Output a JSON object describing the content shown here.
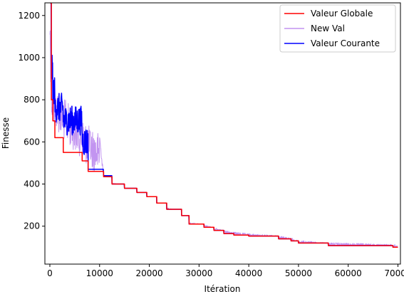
{
  "chart_data": {
    "type": "line",
    "title": "",
    "xlabel": "Itération",
    "ylabel": "Finesse",
    "xlim": [
      -1000,
      70500
    ],
    "ylim": [
      20,
      1260
    ],
    "xticks": [
      0,
      10000,
      20000,
      30000,
      40000,
      50000,
      60000,
      70000
    ],
    "xtick_labels": [
      "0",
      "10000",
      "20000",
      "30000",
      "40000",
      "50000",
      "60000",
      "70000"
    ],
    "yticks": [
      200,
      400,
      600,
      800,
      1000,
      1200
    ],
    "ytick_labels": [
      "200",
      "400",
      "600",
      "800",
      "1000",
      "1200"
    ],
    "grid": false,
    "legend": {
      "placement": "top-right"
    },
    "series": [
      {
        "name": "Valeur Globale",
        "color": "#ff0000",
        "style": "step",
        "x": [
          0,
          300,
          600,
          1000,
          2700,
          6500,
          7700,
          10800,
          12500,
          15000,
          17500,
          19500,
          21500,
          23500,
          26500,
          28000,
          31000,
          33000,
          35000,
          37000,
          40000,
          46000,
          48500,
          50000,
          56000,
          69000,
          70000
        ],
        "y": [
          1260,
          800,
          700,
          620,
          550,
          510,
          460,
          435,
          400,
          380,
          360,
          340,
          310,
          280,
          250,
          210,
          195,
          180,
          165,
          158,
          153,
          140,
          130,
          120,
          108,
          100,
          100
        ]
      },
      {
        "name": "New Val",
        "color": "#c294f0",
        "style": "noisy",
        "x": [
          0,
          300,
          600,
          1000,
          2700,
          6500,
          7700,
          10000,
          10800,
          12500,
          15000,
          17500,
          19500,
          21500,
          23500,
          26500,
          28000,
          31000,
          33000,
          35000,
          37000,
          40000,
          46000,
          48500,
          50000,
          56000,
          69000,
          70000
        ],
        "y": [
          1240,
          930,
          860,
          870,
          810,
          720,
          680,
          640,
          445,
          410,
          385,
          365,
          345,
          318,
          290,
          262,
          220,
          208,
          194,
          180,
          172,
          165,
          155,
          144,
          132,
          122,
          114,
          112
        ]
      },
      {
        "name": "Valeur Courante",
        "color": "#0000ff",
        "style": "noisy",
        "x": [
          0,
          300,
          600,
          1000,
          2700,
          6500,
          7700,
          10800,
          12500,
          15000,
          17500,
          19500,
          21500,
          23500,
          26500,
          28000,
          31000,
          33000,
          35000,
          37000,
          40000,
          46000,
          48500,
          50000,
          56000,
          69000,
          70000
        ],
        "y": [
          1260,
          900,
          800,
          720,
          660,
          560,
          470,
          440,
          400,
          380,
          360,
          340,
          310,
          280,
          250,
          210,
          195,
          180,
          165,
          158,
          153,
          140,
          130,
          120,
          108,
          100,
          100
        ]
      }
    ]
  }
}
